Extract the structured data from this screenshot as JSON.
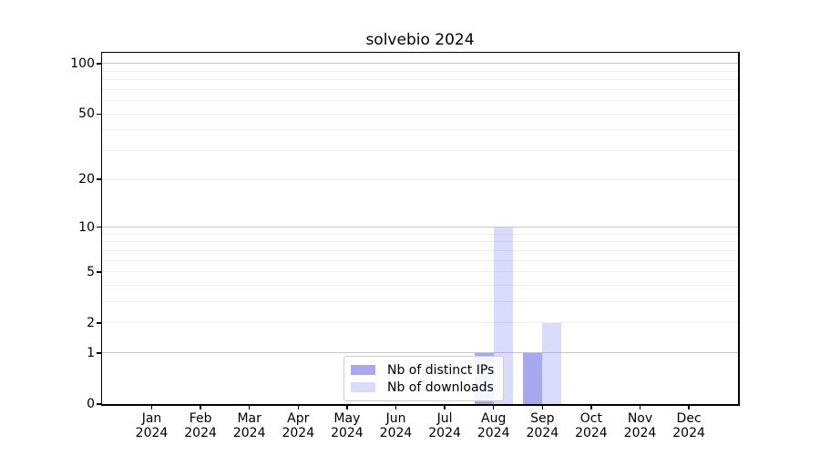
{
  "title": "solvebio 2024",
  "chart_data": {
    "type": "bar",
    "title": "solvebio 2024",
    "categories": [
      "Jan",
      "Feb",
      "Mar",
      "Apr",
      "May",
      "Jun",
      "Jul",
      "Aug",
      "Sep",
      "Oct",
      "Nov",
      "Dec"
    ],
    "category_year": "2024",
    "series": [
      {
        "name": "Nb of distinct IPs",
        "color": "rgba(62,62,222,0.45)",
        "color_hex_on_white": "#a8a8f0",
        "values": [
          0,
          0,
          0,
          0,
          0,
          0,
          0,
          1,
          1,
          0,
          0,
          0
        ]
      },
      {
        "name": "Nb of downloads",
        "color": "rgba(121,121,241,0.28)",
        "color_hex_on_white": "#dadaf8",
        "values": [
          0,
          0,
          0,
          0,
          0,
          0,
          0,
          10,
          2,
          0,
          0,
          0
        ]
      }
    ],
    "xlabel": "",
    "ylabel": "",
    "yscale": "log1p",
    "ylim": [
      0,
      116
    ],
    "y_ticks": [
      0,
      1,
      2,
      5,
      10,
      20,
      50,
      100
    ],
    "y_decade_gridlines": [
      1,
      10,
      100
    ],
    "y_minor_gridlines": [
      3,
      4,
      6,
      7,
      8,
      9,
      30,
      40,
      60,
      70,
      80,
      90
    ],
    "grid": true,
    "legend_position": "bottom-center",
    "colors": {
      "grid_decade": "#c6c6c6",
      "grid_minor": "#ededed",
      "axis": "#000000",
      "legend_border": "#cccccc",
      "text": "#000000"
    }
  }
}
